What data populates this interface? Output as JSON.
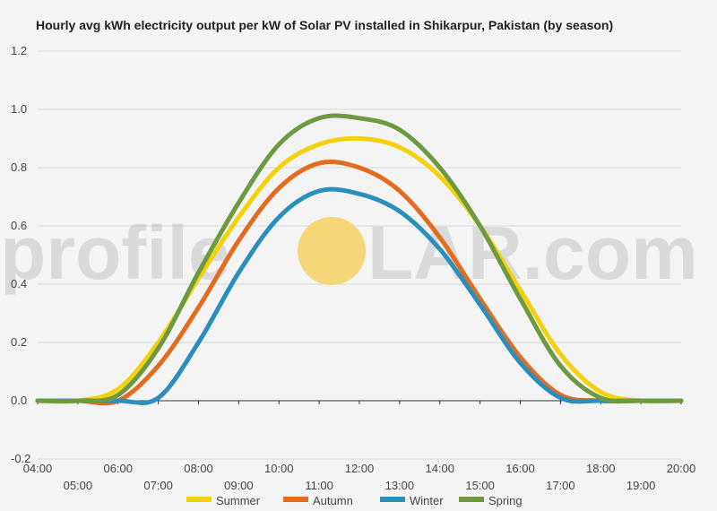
{
  "watermark": {
    "left": "profile",
    "mid": "S",
    "right": "LAR.com",
    "sun_color": "#f6d77a"
  },
  "chart_data": {
    "type": "line",
    "title": "Hourly avg kWh electricity output per kW of Solar PV installed in Shikarpur, Pakistan (by season)",
    "xlabel": "",
    "ylabel": "",
    "ylim": [
      -0.2,
      1.2
    ],
    "yticks": [
      "-0.2",
      "0.0",
      "0.2",
      "0.4",
      "0.6",
      "0.8",
      "1.0",
      "1.2"
    ],
    "ytick_values": [
      -0.2,
      0,
      0.2,
      0.4,
      0.6,
      0.8,
      1.0,
      1.2
    ],
    "x": [
      4,
      5,
      6,
      7,
      8,
      9,
      10,
      11,
      12,
      13,
      14,
      15,
      16,
      17,
      18,
      19,
      20
    ],
    "xticks": [
      "04:00",
      "05:00",
      "06:00",
      "07:00",
      "08:00",
      "09:00",
      "10:00",
      "11:00",
      "12:00",
      "13:00",
      "14:00",
      "15:00",
      "16:00",
      "17:00",
      "18:00",
      "19:00",
      "20:00"
    ],
    "grid": true,
    "legend_position": "bottom",
    "series": [
      {
        "name": "Summer",
        "color": "#f5d10c",
        "values": [
          0,
          0,
          0.04,
          0.2,
          0.42,
          0.63,
          0.8,
          0.88,
          0.9,
          0.87,
          0.77,
          0.6,
          0.38,
          0.16,
          0.03,
          0,
          0
        ]
      },
      {
        "name": "Autumn",
        "color": "#e36c1e",
        "values": [
          0,
          0,
          0,
          0.12,
          0.32,
          0.55,
          0.73,
          0.815,
          0.8,
          0.72,
          0.56,
          0.35,
          0.15,
          0.02,
          0,
          0,
          0
        ]
      },
      {
        "name": "Winter",
        "color": "#2a8fbd",
        "values": [
          0,
          0,
          0,
          0.01,
          0.2,
          0.44,
          0.63,
          0.72,
          0.71,
          0.65,
          0.52,
          0.33,
          0.13,
          0.01,
          0,
          0,
          0
        ]
      },
      {
        "name": "Spring",
        "color": "#6d9a40",
        "values": [
          0,
          0,
          0.02,
          0.18,
          0.44,
          0.68,
          0.88,
          0.97,
          0.97,
          0.93,
          0.8,
          0.6,
          0.35,
          0.12,
          0.01,
          0,
          0
        ]
      }
    ]
  }
}
